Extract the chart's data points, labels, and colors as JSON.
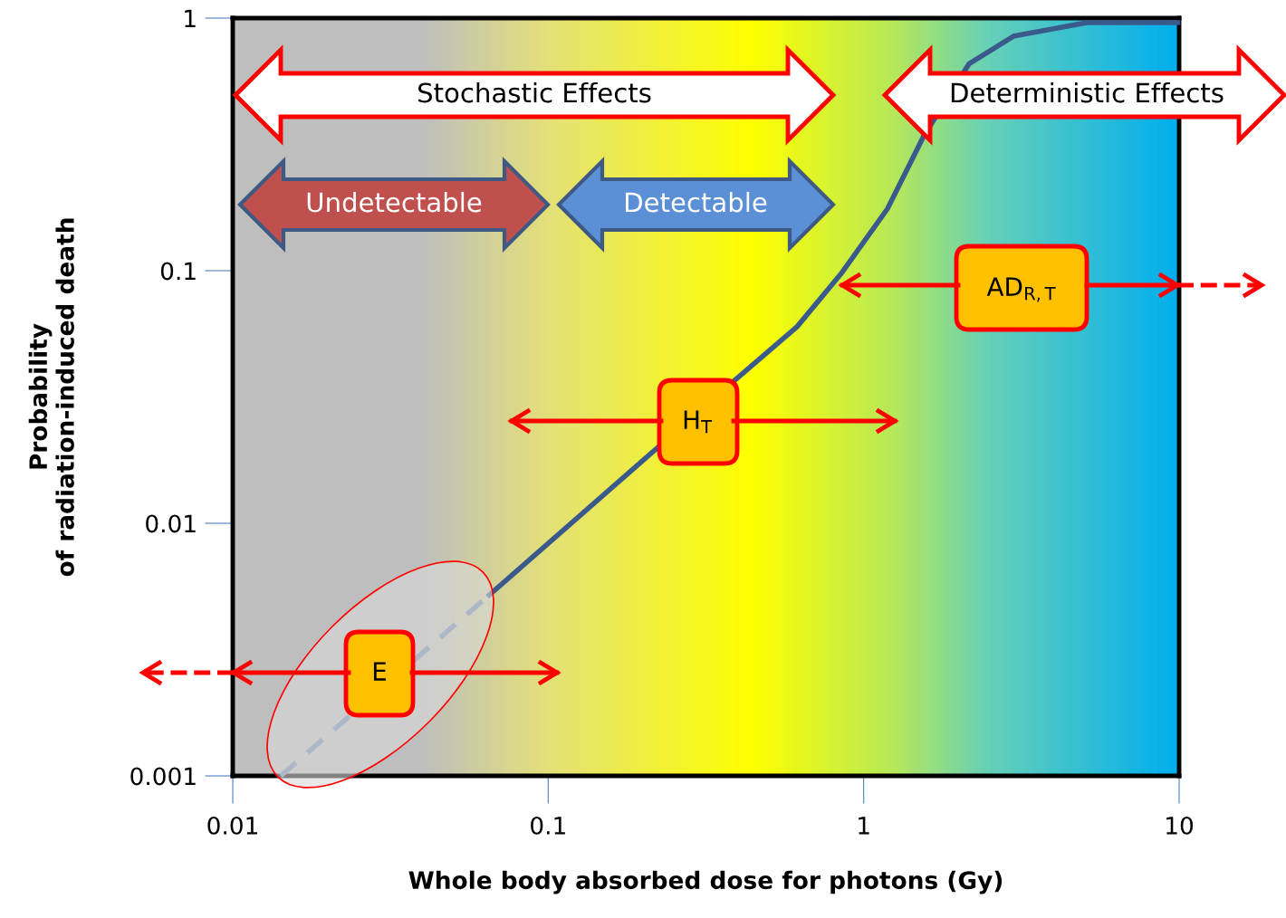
{
  "chart_data": {
    "type": "line",
    "xlabel": "Whole body absorbed dose for photons (Gy)",
    "ylabel": "Probability\nof radiation-induced death",
    "log": "xy",
    "xlim": [
      0.01,
      10
    ],
    "ylim": [
      0.001,
      1
    ],
    "xticks": [
      0.01,
      0.1,
      1,
      10
    ],
    "yticks": [
      0.001,
      0.01,
      0.1,
      1
    ],
    "grid": false,
    "legend": false,
    "series": [
      {
        "color": "#6a88b0",
        "line_style": "dashed",
        "x": [
          0.0142,
          0.065
        ],
        "values": [
          0.001,
          0.0052
        ]
      },
      {
        "color": "#3a5a8c",
        "line_style": "solid",
        "x": [
          0.065,
          0.19,
          0.387,
          0.615,
          0.855,
          1.19,
          1.55,
          2.16,
          3.0,
          5.1,
          9.9
        ],
        "values": [
          0.0052,
          0.0168,
          0.0365,
          0.06,
          0.0986,
          0.176,
          0.341,
          0.66,
          0.85,
          0.96,
          0.96
        ]
      }
    ],
    "annotations": [
      "Stochastic Effects",
      "Deterministic Effects",
      "Undetectable",
      "Detectable",
      "H$_{T}$",
      "E",
      "AD$_{R,T}$"
    ]
  }
}
